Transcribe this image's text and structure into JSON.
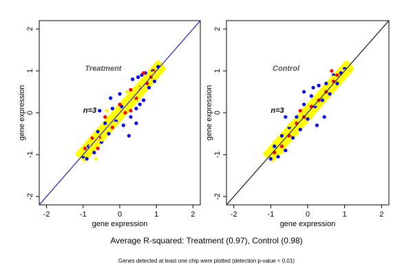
{
  "chart_data": [
    {
      "type": "scatter",
      "title": "Treatment",
      "annotation": "n=3",
      "xlabel": "gene expression",
      "ylabel": "gene expression",
      "xlim": [
        -2.2,
        2.2
      ],
      "ylim": [
        -2.2,
        2.2
      ],
      "xticks": [
        -2,
        -1,
        0,
        1,
        2
      ],
      "yticks": [
        -2,
        -1,
        0,
        1,
        2
      ],
      "grid": false,
      "series": [
        {
          "color": "#0000ff",
          "points": [
            [
              -1.0,
              -1.05
            ],
            [
              -0.9,
              -1.1
            ],
            [
              -0.85,
              -0.8
            ],
            [
              -0.7,
              -0.95
            ],
            [
              -0.6,
              -0.45
            ],
            [
              -0.5,
              -0.7
            ],
            [
              -0.4,
              -0.25
            ],
            [
              -0.3,
              -0.5
            ],
            [
              -0.2,
              0.1
            ],
            [
              -0.1,
              -0.2
            ],
            [
              0.0,
              0.45
            ],
            [
              0.1,
              -0.3
            ],
            [
              0.2,
              0.5
            ],
            [
              0.3,
              -0.1
            ],
            [
              0.35,
              0.8
            ],
            [
              0.45,
              0.1
            ],
            [
              0.5,
              0.85
            ],
            [
              0.55,
              0.2
            ],
            [
              0.6,
              0.9
            ],
            [
              0.65,
              0.3
            ],
            [
              0.7,
              0.95
            ],
            [
              0.8,
              0.6
            ],
            [
              0.9,
              1.0
            ],
            [
              0.95,
              0.75
            ],
            [
              1.05,
              1.1
            ],
            [
              -0.55,
              0.05
            ],
            [
              0.25,
              -0.55
            ],
            [
              0.45,
              -0.25
            ],
            [
              -0.25,
              0.35
            ],
            [
              0.05,
              0.15
            ]
          ]
        },
        {
          "color": "#ff0000",
          "points": [
            [
              -0.95,
              -0.85
            ],
            [
              -0.75,
              -0.6
            ],
            [
              -0.55,
              -0.6
            ],
            [
              -0.4,
              -0.1
            ],
            [
              -0.2,
              -0.35
            ],
            [
              0.0,
              0.2
            ],
            [
              0.15,
              0.0
            ],
            [
              0.3,
              0.55
            ],
            [
              0.45,
              0.35
            ],
            [
              0.55,
              0.6
            ],
            [
              0.65,
              0.95
            ],
            [
              0.75,
              0.7
            ],
            [
              0.85,
              0.85
            ],
            [
              0.95,
              1.0
            ],
            [
              -0.6,
              -0.85
            ],
            [
              0.3,
              0.05
            ]
          ]
        },
        {
          "color": "#ffff00",
          "points": [
            [
              -1.0,
              -1.0
            ],
            [
              -0.8,
              -0.8
            ],
            [
              -0.6,
              -0.6
            ],
            [
              -0.4,
              -0.4
            ],
            [
              -0.2,
              -0.2
            ],
            [
              0.0,
              0.0
            ],
            [
              0.2,
              0.2
            ],
            [
              0.4,
              0.4
            ],
            [
              0.6,
              0.6
            ],
            [
              0.8,
              0.8
            ],
            [
              1.0,
              1.0
            ],
            [
              1.15,
              1.15
            ],
            [
              -0.7,
              -0.55
            ],
            [
              -0.5,
              -0.65
            ],
            [
              -0.3,
              -0.15
            ],
            [
              -0.1,
              -0.25
            ],
            [
              0.1,
              0.3
            ],
            [
              0.3,
              0.15
            ],
            [
              0.5,
              0.6
            ],
            [
              0.7,
              0.55
            ],
            [
              0.9,
              0.95
            ],
            [
              -0.35,
              0.05
            ],
            [
              0.2,
              0.5
            ],
            [
              -0.65,
              -1.1
            ]
          ]
        }
      ],
      "lines": [
        {
          "color": "#ff8c00",
          "from": [
            -2.2,
            -2.2
          ],
          "to": [
            2.2,
            2.2
          ]
        },
        {
          "color": "#0000ff",
          "from": [
            -2.2,
            -2.2
          ],
          "to": [
            2.2,
            2.2
          ]
        }
      ]
    },
    {
      "type": "scatter",
      "title": "Control",
      "annotation": "n=3",
      "xlabel": "gene expression",
      "ylabel": "gene expression",
      "xlim": [
        -2.2,
        2.2
      ],
      "ylim": [
        -2.2,
        2.2
      ],
      "xticks": [
        -2,
        -1,
        0,
        1,
        2
      ],
      "yticks": [
        -2,
        -1,
        0,
        1,
        2
      ],
      "grid": false,
      "series": [
        {
          "color": "#0000ff",
          "points": [
            [
              -1.0,
              -1.1
            ],
            [
              -0.9,
              -0.8
            ],
            [
              -0.8,
              -1.05
            ],
            [
              -0.7,
              -0.55
            ],
            [
              -0.6,
              -0.9
            ],
            [
              -0.5,
              -0.35
            ],
            [
              -0.4,
              -0.6
            ],
            [
              -0.3,
              -0.1
            ],
            [
              -0.2,
              -0.4
            ],
            [
              -0.1,
              0.2
            ],
            [
              0.0,
              -0.15
            ],
            [
              0.1,
              0.4
            ],
            [
              0.2,
              0.15
            ],
            [
              0.3,
              0.65
            ],
            [
              0.4,
              0.3
            ],
            [
              0.5,
              0.7
            ],
            [
              0.6,
              0.45
            ],
            [
              0.7,
              0.9
            ],
            [
              0.8,
              0.7
            ],
            [
              0.9,
              0.95
            ],
            [
              1.0,
              1.05
            ],
            [
              -0.6,
              -0.1
            ],
            [
              0.25,
              -0.3
            ],
            [
              0.45,
              -0.1
            ],
            [
              -0.1,
              0.5
            ],
            [
              0.15,
              0.6
            ]
          ]
        },
        {
          "color": "#ff0000",
          "points": [
            [
              -0.9,
              -0.95
            ],
            [
              -0.7,
              -0.8
            ],
            [
              -0.5,
              -0.55
            ],
            [
              -0.3,
              -0.25
            ],
            [
              -0.1,
              -0.1
            ],
            [
              0.1,
              0.15
            ],
            [
              0.3,
              0.3
            ],
            [
              0.5,
              0.5
            ],
            [
              0.7,
              0.75
            ],
            [
              0.8,
              0.9
            ],
            [
              0.65,
              1.0
            ],
            [
              -0.2,
              0.05
            ]
          ]
        },
        {
          "color": "#ffff00",
          "points": [
            [
              -1.0,
              -1.0
            ],
            [
              -0.8,
              -0.8
            ],
            [
              -0.6,
              -0.6
            ],
            [
              -0.4,
              -0.4
            ],
            [
              -0.2,
              -0.2
            ],
            [
              0.0,
              0.0
            ],
            [
              0.2,
              0.2
            ],
            [
              0.4,
              0.4
            ],
            [
              0.6,
              0.6
            ],
            [
              0.8,
              0.8
            ],
            [
              1.0,
              1.0
            ],
            [
              1.15,
              1.15
            ],
            [
              -0.9,
              -0.7
            ],
            [
              -0.5,
              -0.3
            ],
            [
              -0.3,
              -0.5
            ],
            [
              -0.1,
              0.1
            ],
            [
              0.1,
              -0.1
            ],
            [
              0.3,
              0.45
            ],
            [
              0.5,
              0.35
            ],
            [
              0.7,
              0.85
            ],
            [
              0.9,
              0.85
            ],
            [
              -0.7,
              -0.95
            ]
          ]
        }
      ],
      "lines": [
        {
          "color": "#ff8c00",
          "from": [
            -2.2,
            -2.2
          ],
          "to": [
            2.2,
            2.2
          ]
        },
        {
          "color": "#000000",
          "from": [
            -2.2,
            -2.2
          ],
          "to": [
            2.2,
            2.2
          ]
        }
      ]
    }
  ],
  "summary": "Average R-squared: Treatment (0.97), Control (0.98)",
  "footnote": "Genes detected at least one chip were plotted (detection p-value < 0.01)"
}
